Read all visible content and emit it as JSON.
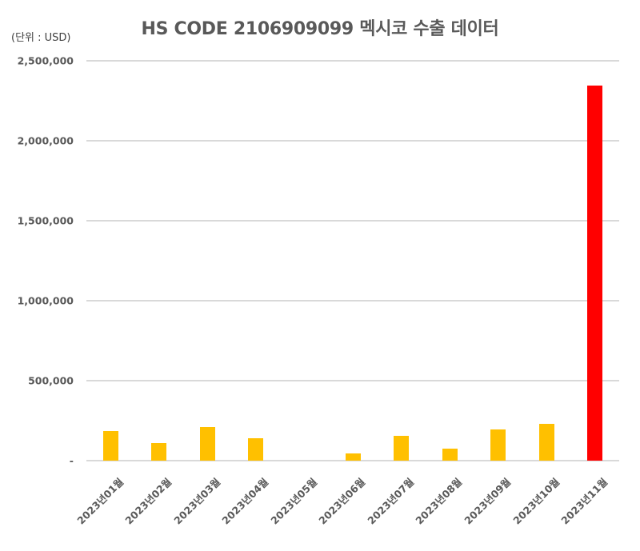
{
  "title": "HS CODE 2106909099 멕시코 수출 데이터",
  "unit_label": "(단위 : USD)",
  "colors": {
    "default_bar": "#FFC000",
    "highlight_bar": "#FF0000",
    "gridline": "#D9D9D9",
    "text": "#595959"
  },
  "y_ticks": [
    "2,500,000",
    "2,000,000",
    "1,500,000",
    "1,000,000",
    "500,000",
    "-"
  ],
  "chart_data": {
    "type": "bar",
    "title": "HS CODE 2106909099 멕시코 수출 데이터",
    "xlabel": "",
    "ylabel": "(단위 : USD)",
    "ylim": [
      0,
      2500000
    ],
    "grid": true,
    "legend": "none",
    "categories": [
      "2023년01월",
      "2023년02월",
      "2023년03월",
      "2023년04월",
      "2023년05월",
      "2023년06월",
      "2023년07월",
      "2023년08월",
      "2023년09월",
      "2023년10월",
      "2023년11월"
    ],
    "values": [
      185000,
      108000,
      210000,
      138000,
      0,
      45000,
      153000,
      75000,
      195000,
      228000,
      2345000
    ],
    "bar_colors": [
      "#FFC000",
      "#FFC000",
      "#FFC000",
      "#FFC000",
      "#FFC000",
      "#FFC000",
      "#FFC000",
      "#FFC000",
      "#FFC000",
      "#FFC000",
      "#FF0000"
    ],
    "y_tick_values": [
      0,
      500000,
      1000000,
      1500000,
      2000000,
      2500000
    ]
  }
}
